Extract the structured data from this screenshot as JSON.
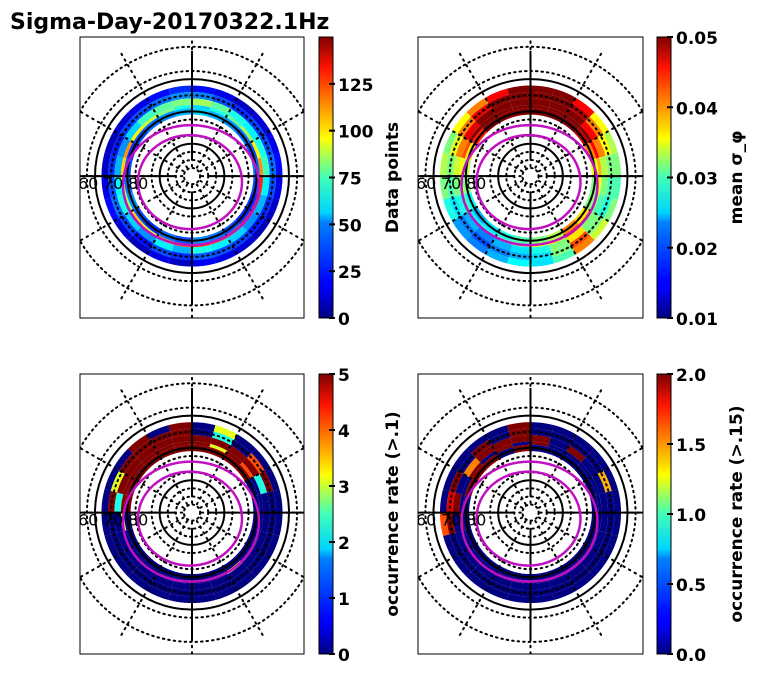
{
  "chart_data": {
    "type": "heatmap",
    "title": "Sigma-Day-20170322.1Hz",
    "projection": "polar (magnetic latitude / MLT)",
    "latitude_labels": [
      "60",
      "70",
      "80"
    ],
    "latitude_circles_solid": [
      60,
      70,
      80
    ],
    "boundary_ovals_color": "#c010c0",
    "colormap": "jet",
    "panels": [
      {
        "name": "data-points",
        "colorbar_label": "Data points",
        "clim": [
          0,
          150
        ],
        "ticks": [
          "0",
          "25",
          "50",
          "75",
          "100",
          "125"
        ],
        "tick_values": [
          0,
          25,
          50,
          75,
          100,
          125
        ],
        "ring_bins": [
          {
            "lat_range": [
              62,
              64
            ],
            "values": [
              10,
              15,
              8,
              12,
              20,
              15,
              10,
              8,
              12,
              15,
              20,
              25,
              20,
              15,
              10,
              12,
              15,
              20,
              15,
              10,
              8,
              12,
              15,
              18
            ]
          },
          {
            "lat_range": [
              64,
              66
            ],
            "values": [
              25,
              30,
              20,
              28,
              35,
              30,
              25,
              22,
              28,
              30,
              35,
              40,
              38,
              30,
              25,
              28,
              30,
              35,
              30,
              25,
              22,
              28,
              30,
              32
            ]
          },
          {
            "lat_range": [
              66,
              68
            ],
            "values": [
              45,
              55,
              40,
              50,
              60,
              55,
              45,
              40,
              50,
              65,
              70,
              75,
              80,
              70,
              60,
              55,
              60,
              65,
              55,
              45,
              40,
              50,
              55,
              60
            ]
          },
          {
            "lat_range": [
              68,
              69
            ],
            "values": [
              120,
              110,
              90,
              100,
              80,
              90,
              100,
              110,
              95,
              85,
              75,
              60,
              50,
              60,
              70,
              80,
              95,
              110,
              125,
              130,
              125,
              115,
              120,
              125
            ]
          },
          {
            "lat_range": [
              69,
              71
            ],
            "values": [
              30,
              35,
              25,
              30,
              40,
              35,
              30,
              25,
              30,
              35,
              40,
              45,
              50,
              45,
              40,
              35,
              30,
              35,
              30,
              25,
              25,
              30,
              35,
              40
            ]
          }
        ]
      },
      {
        "name": "mean-sigma-phi",
        "colorbar_label": "mean σ_φ",
        "clim": [
          0.01,
          0.05
        ],
        "ticks": [
          "0.01",
          "0.02",
          "0.03",
          "0.04",
          "0.05"
        ],
        "tick_values": [
          0.01,
          0.02,
          0.03,
          0.04,
          0.05
        ],
        "ring_bins": [
          {
            "lat_range": [
              62,
              64
            ],
            "values": [
              0.025,
              0.022,
              0.02,
              0.021,
              0.026,
              0.03,
              0.032,
              0.03,
              0.035,
              0.04,
              0.045,
              0.05,
              0.05,
              0.05,
              0.045,
              0.035,
              0.032,
              0.03,
              0.028,
              0.03,
              0.033,
              0.04,
              0.028,
              0.024
            ]
          },
          {
            "lat_range": [
              64,
              66
            ],
            "values": [
              0.022,
              0.02,
              0.018,
              0.02,
              0.024,
              0.028,
              0.03,
              0.034,
              0.04,
              0.046,
              0.05,
              0.05,
              0.05,
              0.05,
              0.048,
              0.04,
              0.035,
              0.03,
              0.028,
              0.026,
              0.03,
              0.042,
              0.03,
              0.024
            ]
          },
          {
            "lat_range": [
              66,
              68
            ],
            "values": [
              0.024,
              0.022,
              0.02,
              0.022,
              0.026,
              0.03,
              0.033,
              0.04,
              0.046,
              0.05,
              0.05,
              0.05,
              0.05,
              0.05,
              0.05,
              0.045,
              0.04,
              0.032,
              0.03,
              0.028,
              0.03,
              0.036,
              0.03,
              0.026
            ]
          },
          {
            "lat_range": [
              68,
              69
            ],
            "values": [
              0.03,
              0.028,
              0.026,
              0.025,
              0.028,
              0.032,
              0.035,
              0.042,
              0.05,
              0.05,
              0.05,
              0.05,
              0.05,
              0.05,
              0.05,
              0.05,
              0.045,
              0.038,
              0.035,
              0.033,
              0.04,
              0.045,
              0.036,
              0.034
            ]
          },
          {
            "lat_range": [
              69,
              71
            ],
            "values": [
              0.028,
              0.026,
              0.024,
              0.022,
              0.025,
              0.03,
              0.032,
              0.036,
              0.044,
              0.05,
              0.05,
              0.05,
              0.05,
              0.05,
              0.05,
              0.048,
              0.04,
              0.034,
              0.03,
              0.03,
              0.036,
              0.04,
              0.032,
              0.03
            ]
          }
        ]
      },
      {
        "name": "occurrence-rate-gt-0.1",
        "colorbar_label": "occurrence rate (>.1)",
        "clim": [
          0,
          5
        ],
        "ticks": [
          "0",
          "1",
          "2",
          "3",
          "4",
          "5"
        ],
        "tick_values": [
          0,
          1,
          2,
          3,
          4,
          5
        ],
        "ring_bins": [
          {
            "lat_range": [
              62,
              64
            ],
            "values": [
              0,
              0,
              0,
              0,
              0,
              0,
              0,
              0,
              0,
              5,
              0,
              5,
              0,
              3,
              0,
              0,
              0,
              0,
              0,
              0,
              0,
              0,
              0,
              0
            ]
          },
          {
            "lat_range": [
              64,
              66
            ],
            "values": [
              0,
              0,
              0,
              0,
              0,
              0,
              5,
              3,
              5,
              5,
              5,
              5,
              0,
              2,
              0,
              4,
              5,
              0,
              0,
              0,
              0,
              0,
              0,
              0
            ]
          },
          {
            "lat_range": [
              66,
              68
            ],
            "values": [
              0,
              0,
              0,
              0,
              0,
              0,
              2,
              5,
              5,
              5,
              5,
              5,
              5,
              5,
              5,
              5,
              2,
              0,
              0,
              0,
              0,
              0,
              0,
              0
            ]
          },
          {
            "lat_range": [
              68,
              69
            ],
            "values": [
              0,
              0,
              0,
              0,
              0,
              3,
              5,
              5,
              5,
              5,
              5,
              5,
              5,
              3,
              5,
              4,
              0,
              0,
              0,
              0,
              0,
              3,
              0,
              0
            ]
          },
          {
            "lat_range": [
              69,
              71
            ],
            "values": [
              0,
              0,
              0,
              0,
              0,
              0,
              5,
              5,
              5,
              5,
              5,
              5,
              5,
              5,
              5,
              5,
              0,
              0,
              0,
              0,
              0,
              0,
              0,
              0
            ]
          }
        ]
      },
      {
        "name": "occurrence-rate-gt-0.15",
        "colorbar_label": "occurrence rate (>.15)",
        "clim": [
          0,
          2
        ],
        "ticks": [
          "0.0",
          "0.5",
          "1.0",
          "1.5",
          "2.0"
        ],
        "tick_values": [
          0.0,
          0.5,
          1.0,
          1.5,
          2.0
        ],
        "ring_bins": [
          {
            "lat_range": [
              62,
              64
            ],
            "values": [
              0,
              0,
              0,
              0,
              0,
              1.6,
              0,
              0,
              0,
              0,
              0,
              2,
              0,
              0,
              0,
              0,
              0,
              0,
              0,
              0,
              0,
              0,
              0,
              0
            ]
          },
          {
            "lat_range": [
              64,
              66
            ],
            "values": [
              0,
              0,
              0,
              0,
              0,
              2,
              1.8,
              2,
              0,
              2,
              0,
              2,
              0,
              0,
              0,
              0,
              1.4,
              0,
              0,
              0,
              0,
              0,
              0,
              0
            ]
          },
          {
            "lat_range": [
              66,
              68
            ],
            "values": [
              0,
              0,
              0,
              0,
              0,
              0,
              2,
              0,
              1.5,
              2,
              2,
              2,
              2,
              0,
              2,
              0,
              0,
              0,
              0,
              0,
              0,
              0,
              0,
              0
            ]
          },
          {
            "lat_range": [
              68,
              69
            ],
            "values": [
              0,
              0,
              0,
              0,
              0,
              2,
              0,
              0,
              2,
              0,
              2,
              0,
              2,
              0,
              0,
              0,
              0,
              0,
              0,
              0,
              0,
              0,
              0,
              0
            ]
          },
          {
            "lat_range": [
              69,
              71
            ],
            "values": [
              0,
              0,
              0,
              0,
              0,
              0,
              0,
              2,
              2,
              2,
              0,
              2,
              0,
              0,
              0,
              0,
              0,
              0,
              0,
              0,
              0,
              0,
              0,
              0
            ]
          }
        ]
      }
    ]
  }
}
